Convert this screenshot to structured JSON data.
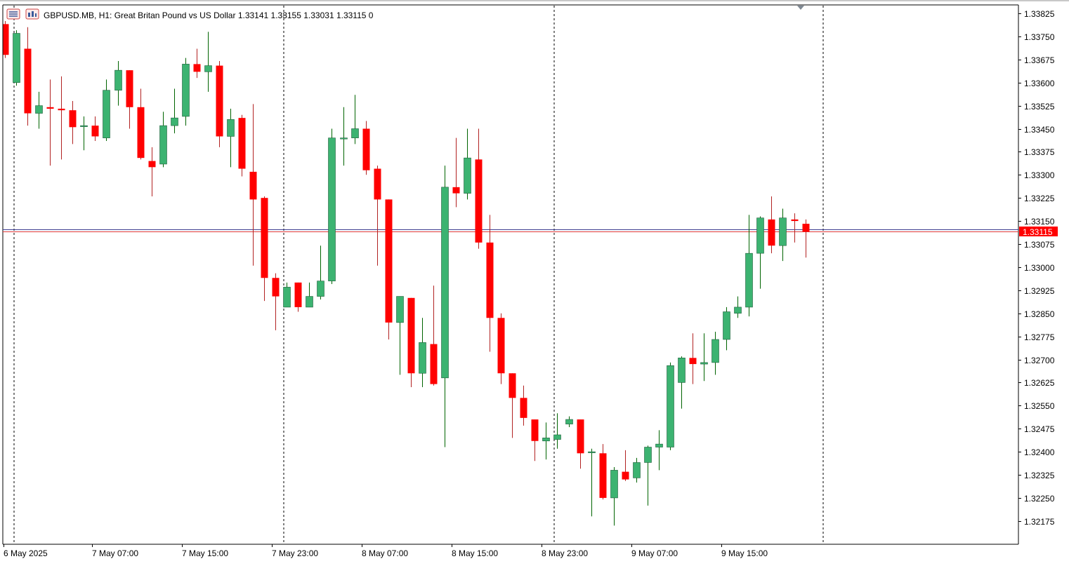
{
  "header": {
    "symbol": "GBPUSD.MB",
    "timeframe": "H1:",
    "description": "Great Britan Pound vs US Dollar",
    "ohlc": "1.33141 1.33155 1.33031 1.33115",
    "volume": "0"
  },
  "colors": {
    "bull": "#3cb371",
    "bear": "#ff0000",
    "wick_bull": "#006400",
    "wick_bear": "#b22222",
    "bid_line": "#e0393a",
    "ask_line": "#3b3b8f",
    "price_tag_bg": "#ff0000",
    "price_tag_text": "#ffffff"
  },
  "icons": [
    "chart-window-icon",
    "chart-properties-icon"
  ],
  "chart_data": {
    "type": "candlestick",
    "ylim": [
      1.32115,
      1.33855
    ],
    "y_ticks": [
      "1.33825",
      "1.33750",
      "1.33675",
      "1.33600",
      "1.33525",
      "1.33450",
      "1.33375",
      "1.33300",
      "1.33225",
      "1.33150",
      "1.33075",
      "1.33000",
      "1.32925",
      "1.32850",
      "1.32775",
      "1.32700",
      "1.32625",
      "1.32550",
      "1.32475",
      "1.32400",
      "1.32325",
      "1.32250",
      "1.32175"
    ],
    "x_labels": [
      "6 May 2025",
      "7 May 07:00",
      "7 May 15:00",
      "7 May 23:00",
      "8 May 07:00",
      "8 May 15:00",
      "8 May 23:00",
      "9 May 07:00",
      "9 May 15:00"
    ],
    "current_price": "1.33115",
    "current_price_value": 1.33115,
    "ask_price_value": 1.33122,
    "candles": [
      {
        "o": 1.3379,
        "h": 1.338,
        "l": 1.3368,
        "c": 1.3369
      },
      {
        "o": 1.336,
        "h": 1.3377,
        "l": 1.3359,
        "c": 1.3376
      },
      {
        "o": 1.3371,
        "h": 1.3378,
        "l": 1.3346,
        "c": 1.335
      },
      {
        "o": 1.335,
        "h": 1.3357,
        "l": 1.3345,
        "c": 1.33525
      },
      {
        "o": 1.3352,
        "h": 1.3361,
        "l": 1.3333,
        "c": 1.33515
      },
      {
        "o": 1.33515,
        "h": 1.3362,
        "l": 1.3335,
        "c": 1.3351
      },
      {
        "o": 1.3351,
        "h": 1.3354,
        "l": 1.334,
        "c": 1.33455
      },
      {
        "o": 1.3346,
        "h": 1.3349,
        "l": 1.3338,
        "c": 1.3346
      },
      {
        "o": 1.3346,
        "h": 1.3349,
        "l": 1.3341,
        "c": 1.33425
      },
      {
        "o": 1.3342,
        "h": 1.3361,
        "l": 1.3341,
        "c": 1.33575
      },
      {
        "o": 1.33575,
        "h": 1.3367,
        "l": 1.33525,
        "c": 1.3364
      },
      {
        "o": 1.3364,
        "h": 1.3364,
        "l": 1.3345,
        "c": 1.3352
      },
      {
        "o": 1.3352,
        "h": 1.3358,
        "l": 1.3335,
        "c": 1.33355
      },
      {
        "o": 1.33345,
        "h": 1.3339,
        "l": 1.3323,
        "c": 1.33325
      },
      {
        "o": 1.33335,
        "h": 1.33505,
        "l": 1.33325,
        "c": 1.3346
      },
      {
        "o": 1.3346,
        "h": 1.3358,
        "l": 1.33435,
        "c": 1.33485
      },
      {
        "o": 1.3349,
        "h": 1.3368,
        "l": 1.3346,
        "c": 1.3366
      },
      {
        "o": 1.3366,
        "h": 1.3371,
        "l": 1.33615,
        "c": 1.33635
      },
      {
        "o": 1.33635,
        "h": 1.33765,
        "l": 1.3357,
        "c": 1.33655
      },
      {
        "o": 1.33655,
        "h": 1.3367,
        "l": 1.3339,
        "c": 1.33425
      },
      {
        "o": 1.33425,
        "h": 1.33515,
        "l": 1.33325,
        "c": 1.3348
      },
      {
        "o": 1.33485,
        "h": 1.33495,
        "l": 1.33295,
        "c": 1.3332
      },
      {
        "o": 1.3331,
        "h": 1.3353,
        "l": 1.33005,
        "c": 1.3322
      },
      {
        "o": 1.33225,
        "h": 1.3323,
        "l": 1.3289,
        "c": 1.32965
      },
      {
        "o": 1.32965,
        "h": 1.3298,
        "l": 1.32795,
        "c": 1.32905
      },
      {
        "o": 1.3287,
        "h": 1.3295,
        "l": 1.3287,
        "c": 1.32935
      },
      {
        "o": 1.3295,
        "h": 1.3295,
        "l": 1.32855,
        "c": 1.3287
      },
      {
        "o": 1.3287,
        "h": 1.3295,
        "l": 1.3287,
        "c": 1.32905
      },
      {
        "o": 1.32905,
        "h": 1.3307,
        "l": 1.32895,
        "c": 1.32955
      },
      {
        "o": 1.32955,
        "h": 1.3345,
        "l": 1.32945,
        "c": 1.3342
      },
      {
        "o": 1.3342,
        "h": 1.3352,
        "l": 1.3333,
        "c": 1.3342
      },
      {
        "o": 1.3342,
        "h": 1.3356,
        "l": 1.334,
        "c": 1.3345
      },
      {
        "o": 1.3345,
        "h": 1.33475,
        "l": 1.333,
        "c": 1.33315
      },
      {
        "o": 1.3332,
        "h": 1.3333,
        "l": 1.33005,
        "c": 1.3322
      },
      {
        "o": 1.3322,
        "h": 1.3322,
        "l": 1.32765,
        "c": 1.3282
      },
      {
        "o": 1.3282,
        "h": 1.32905,
        "l": 1.3265,
        "c": 1.32905
      },
      {
        "o": 1.329,
        "h": 1.329,
        "l": 1.3261,
        "c": 1.32655
      },
      {
        "o": 1.32655,
        "h": 1.32835,
        "l": 1.3261,
        "c": 1.32755
      },
      {
        "o": 1.3275,
        "h": 1.3294,
        "l": 1.32615,
        "c": 1.3262
      },
      {
        "o": 1.3264,
        "h": 1.3333,
        "l": 1.32415,
        "c": 1.3326
      },
      {
        "o": 1.3326,
        "h": 1.3342,
        "l": 1.33195,
        "c": 1.3324
      },
      {
        "o": 1.3324,
        "h": 1.3345,
        "l": 1.3322,
        "c": 1.33355
      },
      {
        "o": 1.3335,
        "h": 1.3345,
        "l": 1.3306,
        "c": 1.3308
      },
      {
        "o": 1.3308,
        "h": 1.3317,
        "l": 1.32725,
        "c": 1.32835
      },
      {
        "o": 1.32835,
        "h": 1.3285,
        "l": 1.3262,
        "c": 1.32655
      },
      {
        "o": 1.32655,
        "h": 1.32655,
        "l": 1.32445,
        "c": 1.32575
      },
      {
        "o": 1.32575,
        "h": 1.32615,
        "l": 1.32485,
        "c": 1.3251
      },
      {
        "o": 1.32505,
        "h": 1.32505,
        "l": 1.3237,
        "c": 1.32435
      },
      {
        "o": 1.32435,
        "h": 1.32495,
        "l": 1.32375,
        "c": 1.32445
      },
      {
        "o": 1.3244,
        "h": 1.32525,
        "l": 1.3241,
        "c": 1.32455
      },
      {
        "o": 1.3249,
        "h": 1.32515,
        "l": 1.3248,
        "c": 1.32505
      },
      {
        "o": 1.32505,
        "h": 1.32505,
        "l": 1.32345,
        "c": 1.32395
      },
      {
        "o": 1.324,
        "h": 1.3241,
        "l": 1.3219,
        "c": 1.324
      },
      {
        "o": 1.32395,
        "h": 1.32425,
        "l": 1.32245,
        "c": 1.3225
      },
      {
        "o": 1.3225,
        "h": 1.3235,
        "l": 1.3216,
        "c": 1.3234
      },
      {
        "o": 1.32335,
        "h": 1.32405,
        "l": 1.32305,
        "c": 1.3231
      },
      {
        "o": 1.32315,
        "h": 1.3238,
        "l": 1.323,
        "c": 1.32365
      },
      {
        "o": 1.32365,
        "h": 1.3242,
        "l": 1.32225,
        "c": 1.32415
      },
      {
        "o": 1.32415,
        "h": 1.3247,
        "l": 1.3234,
        "c": 1.32425
      },
      {
        "o": 1.32415,
        "h": 1.3269,
        "l": 1.32405,
        "c": 1.3268
      },
      {
        "o": 1.32625,
        "h": 1.3271,
        "l": 1.3254,
        "c": 1.32705
      },
      {
        "o": 1.32705,
        "h": 1.32785,
        "l": 1.3262,
        "c": 1.32685
      },
      {
        "o": 1.32685,
        "h": 1.32785,
        "l": 1.3263,
        "c": 1.3269
      },
      {
        "o": 1.3269,
        "h": 1.3279,
        "l": 1.3265,
        "c": 1.32765
      },
      {
        "o": 1.32765,
        "h": 1.3287,
        "l": 1.3273,
        "c": 1.32855
      },
      {
        "o": 1.3285,
        "h": 1.32905,
        "l": 1.32835,
        "c": 1.3287
      },
      {
        "o": 1.3287,
        "h": 1.3317,
        "l": 1.3284,
        "c": 1.33045
      },
      {
        "o": 1.33045,
        "h": 1.33165,
        "l": 1.3293,
        "c": 1.3316
      },
      {
        "o": 1.33155,
        "h": 1.3323,
        "l": 1.33045,
        "c": 1.3307
      },
      {
        "o": 1.3307,
        "h": 1.3319,
        "l": 1.3302,
        "c": 1.3316
      },
      {
        "o": 1.33155,
        "h": 1.33175,
        "l": 1.3308,
        "c": 1.3315
      },
      {
        "o": 1.33141,
        "h": 1.33155,
        "l": 1.33031,
        "c": 1.33115
      }
    ]
  }
}
